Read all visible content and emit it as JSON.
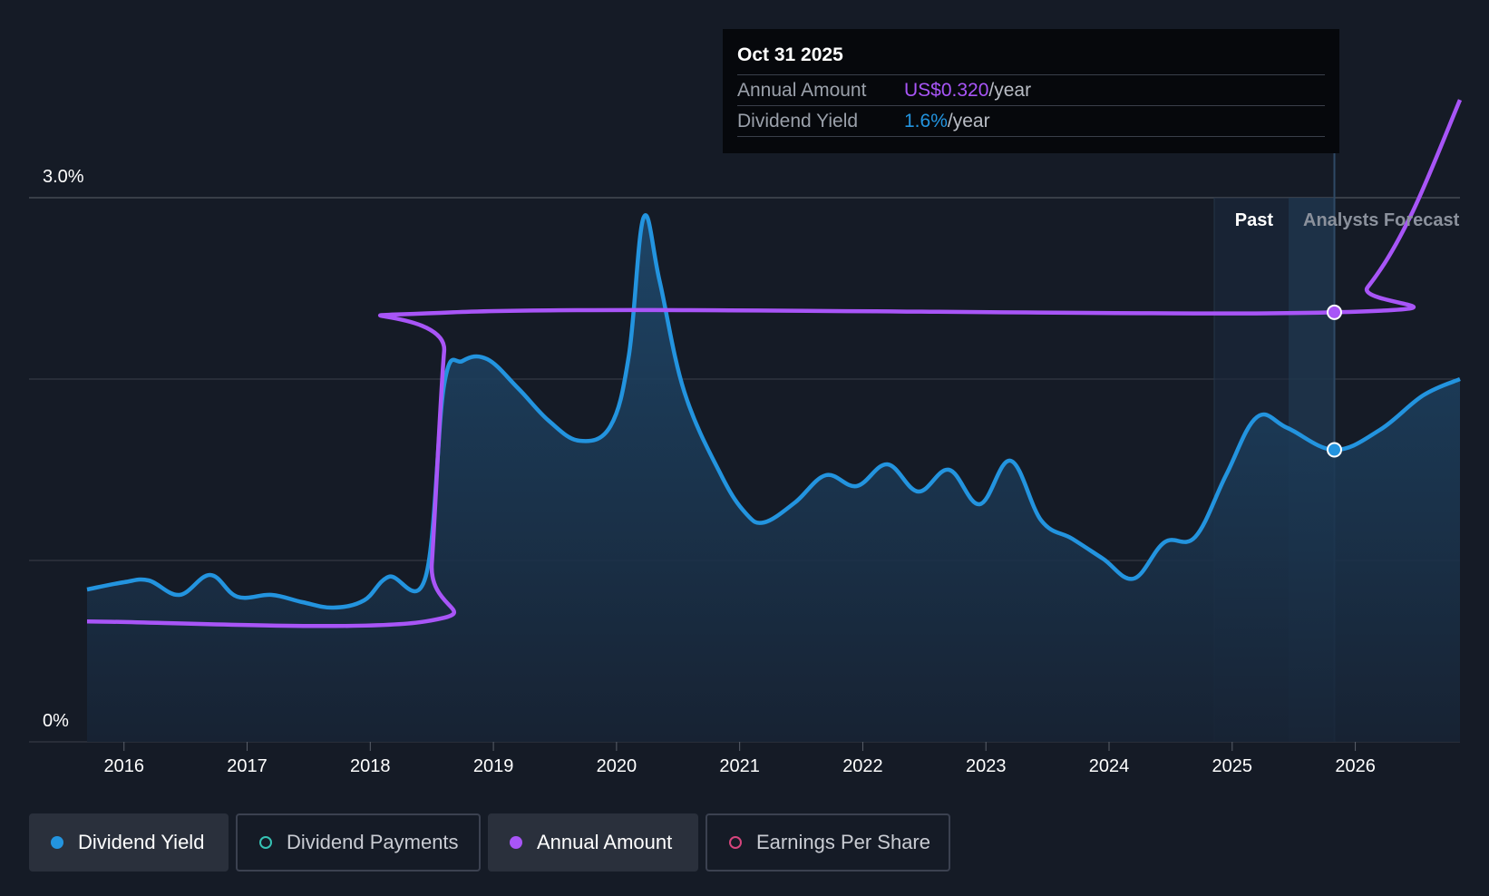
{
  "tooltip": {
    "date": "Oct 31 2025",
    "annual_label": "Annual Amount",
    "annual_value": "US$0.320",
    "annual_unit": "/year",
    "yield_label": "Dividend Yield",
    "yield_value": "1.6%",
    "yield_unit": "/year"
  },
  "region_labels": {
    "past": "Past",
    "forecast": "Analysts Forecast"
  },
  "legend": [
    {
      "label": "Dividend Yield",
      "active": true,
      "color": "#2394df",
      "filled": true
    },
    {
      "label": "Dividend Payments",
      "active": false,
      "color": "#36c2b4",
      "filled": false
    },
    {
      "label": "Annual Amount",
      "active": true,
      "color": "#a855f7",
      "filled": true
    },
    {
      "label": "Earnings Per Share",
      "active": false,
      "color": "#d6457d",
      "filled": false
    }
  ],
  "colors": {
    "background": "#151b26",
    "yield_line": "#2394df",
    "annual_line": "#a855f7",
    "gridline": "#3a3f4a"
  },
  "chart_data": {
    "type": "line",
    "y_tick_labels": [
      "3.0%",
      "0%"
    ],
    "ylim": [
      0,
      3.0
    ],
    "x_ticks": [
      2016,
      2017,
      2018,
      2019,
      2020,
      2021,
      2022,
      2023,
      2024,
      2025,
      2026
    ],
    "xlim": [
      2015.7,
      2026.85
    ],
    "past_forecast_split": 2025.83,
    "series": [
      {
        "name": "Dividend Yield",
        "unit": "%",
        "points": [
          [
            2015.7,
            0.84
          ],
          [
            2016.0,
            0.88
          ],
          [
            2016.2,
            0.89
          ],
          [
            2016.45,
            0.81
          ],
          [
            2016.7,
            0.92
          ],
          [
            2016.92,
            0.8
          ],
          [
            2017.2,
            0.81
          ],
          [
            2017.45,
            0.77
          ],
          [
            2017.7,
            0.74
          ],
          [
            2017.95,
            0.78
          ],
          [
            2018.15,
            0.91
          ],
          [
            2018.45,
            0.91
          ],
          [
            2018.6,
            1.97
          ],
          [
            2018.75,
            2.1
          ],
          [
            2018.95,
            2.11
          ],
          [
            2019.2,
            1.95
          ],
          [
            2019.45,
            1.77
          ],
          [
            2019.7,
            1.66
          ],
          [
            2019.95,
            1.74
          ],
          [
            2020.1,
            2.13
          ],
          [
            2020.22,
            2.89
          ],
          [
            2020.35,
            2.54
          ],
          [
            2020.55,
            1.93
          ],
          [
            2020.85,
            1.47
          ],
          [
            2021.05,
            1.26
          ],
          [
            2021.2,
            1.21
          ],
          [
            2021.45,
            1.32
          ],
          [
            2021.7,
            1.47
          ],
          [
            2021.95,
            1.41
          ],
          [
            2022.2,
            1.53
          ],
          [
            2022.45,
            1.38
          ],
          [
            2022.7,
            1.5
          ],
          [
            2022.95,
            1.31
          ],
          [
            2023.2,
            1.55
          ],
          [
            2023.45,
            1.22
          ],
          [
            2023.7,
            1.12
          ],
          [
            2023.95,
            1.01
          ],
          [
            2024.2,
            0.9
          ],
          [
            2024.45,
            1.1
          ],
          [
            2024.7,
            1.13
          ],
          [
            2024.95,
            1.47
          ],
          [
            2025.2,
            1.79
          ],
          [
            2025.45,
            1.73
          ],
          [
            2025.83,
            1.61
          ],
          [
            2026.2,
            1.72
          ],
          [
            2026.55,
            1.91
          ],
          [
            2026.85,
            2.0
          ]
        ]
      },
      {
        "name": "Annual Amount",
        "unit": "US$",
        "points": [
          [
            2015.7,
            0.16
          ],
          [
            2018.45,
            0.16
          ],
          [
            2018.5,
            0.19
          ],
          [
            2018.6,
            0.3
          ],
          [
            2018.67,
            0.32
          ],
          [
            2025.83,
            0.32
          ],
          [
            2026.1,
            0.333
          ],
          [
            2026.45,
            0.37
          ],
          [
            2026.85,
            0.43
          ]
        ]
      }
    ]
  }
}
